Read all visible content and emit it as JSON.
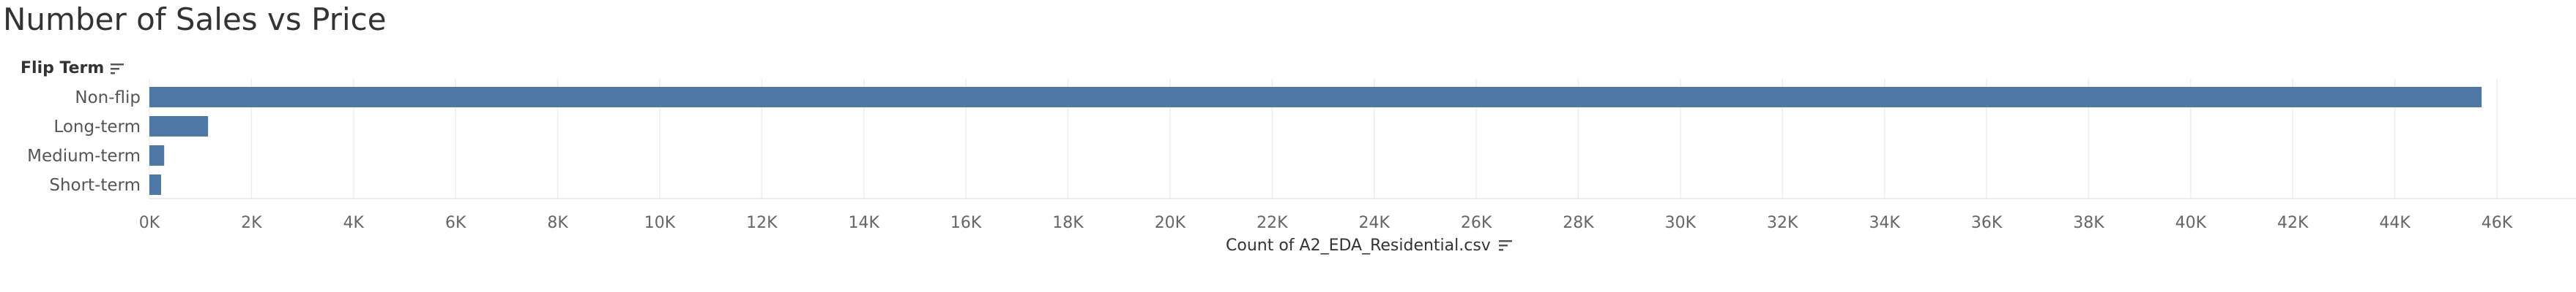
{
  "title": "Number of Sales vs Price",
  "row_header": "Flip Term",
  "x_axis_title": "Count of A2_EDA_Residential.csv",
  "colors": {
    "bar": "#4e79a7",
    "grid": "#ededed",
    "axis_text": "#666666",
    "label_text": "#555555"
  },
  "chart_data": {
    "type": "bar",
    "orientation": "horizontal",
    "categories": [
      "Non-flip",
      "Long-term",
      "Medium-term",
      "Short-term"
    ],
    "values": [
      45700,
      1150,
      290,
      230
    ],
    "xlabel": "Count of A2_EDA_Residential.csv",
    "ylabel": "Flip Term",
    "xlim": [
      0,
      46000
    ],
    "x_ticks": [
      "0K",
      "2K",
      "4K",
      "6K",
      "8K",
      "10K",
      "12K",
      "14K",
      "16K",
      "18K",
      "20K",
      "22K",
      "24K",
      "26K",
      "28K",
      "30K",
      "32K",
      "34K",
      "36K",
      "38K",
      "40K",
      "42K",
      "44K",
      "46K"
    ],
    "grid": "vertical"
  }
}
